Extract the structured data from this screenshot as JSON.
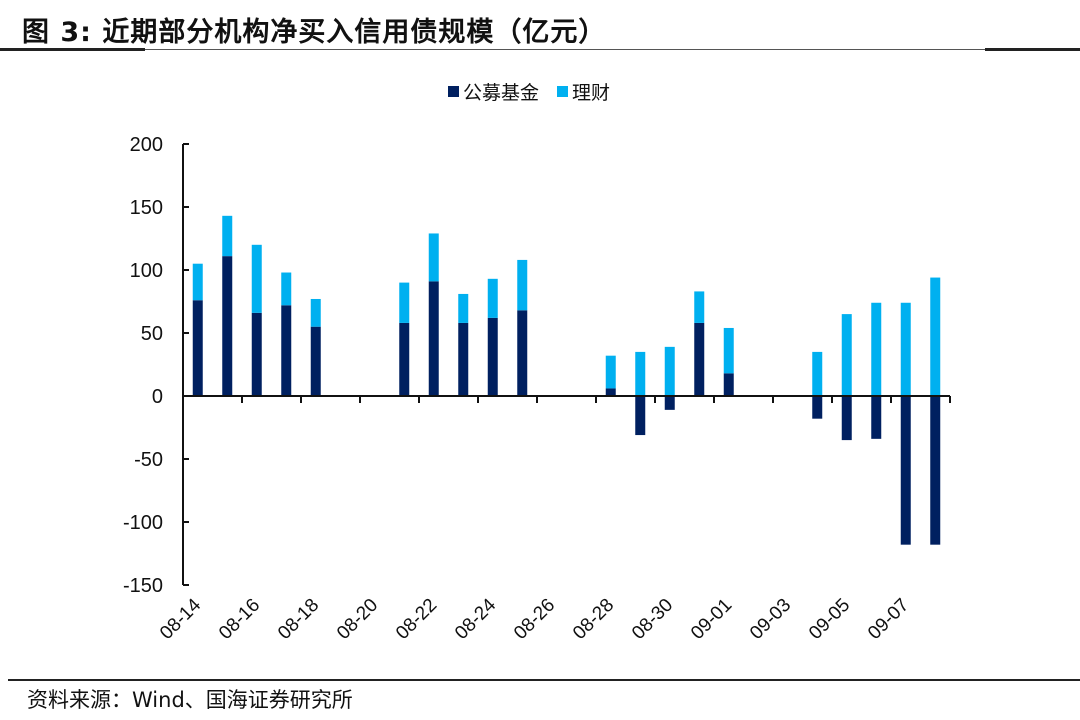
{
  "figure": {
    "title": "图 3:  近期部分机构净买入信用债规模（亿元）",
    "source": "资料来源：Wind、国海证券研究所"
  },
  "colors": {
    "fund": "#002060",
    "wealth": "#00B0F0"
  },
  "chart_data": {
    "type": "bar",
    "stacked": true,
    "title": "近期部分机构净买入信用债规模（亿元）",
    "xlabel": "",
    "ylabel": "",
    "ylim": [
      -150,
      200
    ],
    "yticks": [
      "200",
      "150",
      "100",
      "50",
      "0",
      "-50",
      "-100",
      "-150"
    ],
    "ytick_values": [
      200,
      150,
      100,
      50,
      0,
      -50,
      -100,
      -150
    ],
    "grid": false,
    "legend_position": "top-center",
    "categories": [
      "08-14",
      "08-15",
      "08-16",
      "08-17",
      "08-18",
      "08-19",
      "08-20",
      "08-21",
      "08-22",
      "08-23",
      "08-24",
      "08-25",
      "08-26",
      "08-27",
      "08-28",
      "08-29",
      "08-30",
      "08-31",
      "09-01",
      "09-02",
      "09-03",
      "09-04",
      "09-05",
      "09-06",
      "09-07",
      "09-08"
    ],
    "xtick_labels": [
      "08-14",
      "08-16",
      "08-18",
      "08-20",
      "08-22",
      "08-24",
      "08-26",
      "08-28",
      "08-30",
      "09-01",
      "09-03",
      "09-05",
      "09-07"
    ],
    "series": [
      {
        "name": "公募基金",
        "color": "#002060",
        "values": [
          76,
          111,
          66,
          72,
          55,
          0,
          0,
          58,
          91,
          58,
          62,
          68,
          0,
          0,
          6,
          -31,
          -11,
          58,
          18,
          0,
          0,
          -18,
          -35,
          -34,
          -118,
          -118
        ]
      },
      {
        "name": "理财",
        "color": "#00B0F0",
        "values": [
          29,
          32,
          54,
          26,
          22,
          0,
          0,
          32,
          38,
          23,
          31,
          40,
          0,
          0,
          26,
          35,
          39,
          25,
          36,
          0,
          0,
          35,
          65,
          74,
          74,
          94
        ]
      }
    ]
  }
}
